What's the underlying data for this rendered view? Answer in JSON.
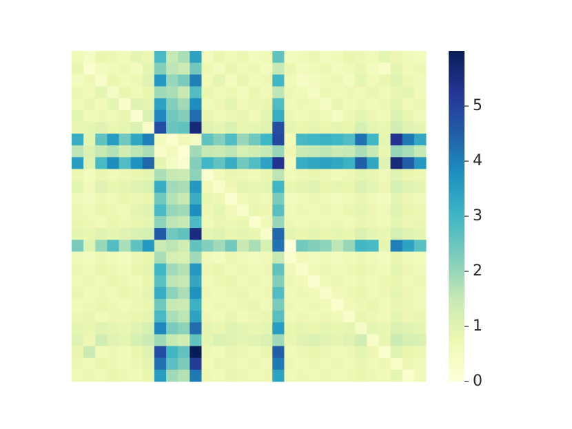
{
  "chart_data": {
    "type": "heatmap",
    "cmap": "YlGnBu",
    "vlim": [
      0,
      6
    ],
    "colorbar_ticks": [
      0,
      1,
      2,
      3,
      4,
      5
    ],
    "matrix": [
      [
        0.6,
        0.4,
        0.8,
        0.7,
        0.6,
        0.9,
        0.7,
        2.9,
        1.5,
        1.8,
        3.4,
        0.5,
        0.8,
        0.6,
        0.7,
        0.5,
        0.6,
        2.6,
        0.5,
        0.6,
        0.7,
        0.5,
        0.6,
        0.8,
        0.7,
        0.6,
        0.9,
        0.7,
        0.6,
        0.5
      ],
      [
        0.8,
        0.2,
        0.5,
        0.6,
        0.7,
        0.5,
        0.9,
        2.2,
        1.6,
        1.4,
        2.4,
        0.7,
        0.5,
        0.8,
        0.6,
        0.7,
        0.5,
        1.5,
        0.8,
        0.5,
        0.6,
        0.7,
        0.5,
        0.6,
        0.8,
        0.5,
        0.3,
        0.9,
        0.6,
        0.7
      ],
      [
        0.5,
        0.7,
        0.3,
        0.8,
        0.6,
        0.7,
        1.0,
        3.6,
        2.0,
        2.3,
        4.0,
        0.6,
        0.9,
        0.5,
        0.8,
        0.6,
        0.7,
        3.0,
        0.6,
        0.4,
        0.5,
        0.6,
        0.7,
        0.5,
        0.9,
        0.6,
        0.8,
        1.0,
        0.7,
        0.6
      ],
      [
        0.7,
        0.6,
        0.9,
        0.4,
        0.8,
        0.6,
        0.8,
        1.9,
        1.8,
        1.5,
        2.8,
        0.8,
        0.6,
        0.7,
        0.5,
        0.8,
        0.6,
        1.6,
        0.7,
        0.6,
        0.4,
        0.7,
        0.6,
        0.7,
        0.6,
        0.8,
        0.6,
        0.8,
        0.9,
        0.6
      ],
      [
        0.6,
        0.8,
        0.6,
        0.9,
        0.3,
        1.0,
        0.9,
        3.4,
        2.2,
        1.9,
        3.8,
        0.6,
        0.7,
        0.9,
        0.6,
        0.7,
        0.8,
        2.8,
        0.6,
        0.7,
        0.6,
        0.4,
        0.8,
        0.6,
        0.7,
        0.6,
        0.7,
        0.9,
        0.6,
        0.7
      ],
      [
        0.9,
        0.6,
        0.7,
        0.6,
        0.8,
        0.2,
        1.1,
        3.9,
        2.4,
        2.2,
        4.3,
        0.8,
        0.6,
        0.7,
        0.8,
        0.6,
        0.9,
        3.2,
        0.7,
        0.6,
        0.7,
        0.6,
        0.4,
        0.7,
        0.9,
        0.7,
        0.6,
        1.1,
        0.8,
        0.6
      ],
      [
        0.8,
        0.9,
        1.0,
        0.8,
        0.9,
        1.1,
        0.3,
        4.8,
        2.5,
        2.6,
        5.6,
        1.0,
        0.9,
        1.1,
        0.8,
        0.9,
        1.0,
        4.8,
        0.9,
        0.8,
        0.9,
        0.8,
        0.9,
        0.8,
        1.2,
        0.9,
        0.8,
        1.3,
        1.0,
        0.9
      ],
      [
        3.2,
        0.9,
        2.6,
        3.5,
        2.4,
        3.3,
        4.0,
        0.5,
        0.2,
        0.6,
        0.4,
        2.6,
        2.2,
        2.8,
        2.0,
        2.4,
        3.0,
        4.9,
        0.6,
        2.9,
        3.0,
        3.1,
        3.0,
        2.8,
        4.2,
        3.0,
        0.9,
        5.3,
        4.1,
        3.3
      ],
      [
        1.6,
        1.1,
        1.5,
        1.7,
        1.3,
        1.6,
        1.8,
        0.3,
        0.5,
        0.1,
        1.9,
        1.5,
        1.4,
        1.6,
        1.2,
        1.3,
        1.5,
        2.0,
        0.7,
        1.4,
        1.5,
        1.6,
        1.4,
        1.5,
        1.8,
        1.5,
        0.8,
        2.0,
        1.8,
        1.5
      ],
      [
        3.5,
        1.0,
        2.9,
        3.8,
        2.8,
        3.7,
        4.4,
        0.9,
        0.4,
        0.2,
        2.2,
        3.0,
        2.6,
        3.2,
        2.4,
        2.8,
        3.4,
        5.3,
        0.5,
        3.2,
        3.3,
        3.4,
        3.3,
        3.1,
        4.5,
        3.3,
        1.0,
        5.6,
        4.5,
        3.6
      ],
      [
        0.7,
        0.5,
        0.8,
        0.6,
        0.7,
        0.8,
        0.9,
        1.8,
        1.5,
        1.4,
        2.1,
        0.2,
        0.6,
        0.8,
        0.7,
        0.6,
        0.8,
        1.6,
        0.6,
        0.7,
        0.8,
        0.7,
        0.6,
        0.7,
        0.9,
        0.8,
        0.6,
        1.0,
        0.8,
        0.7
      ],
      [
        0.9,
        0.6,
        1.0,
        0.8,
        0.9,
        1.0,
        1.1,
        3.2,
        1.9,
        1.8,
        3.6,
        0.6,
        0.3,
        0.7,
        0.9,
        0.8,
        0.9,
        3.0,
        0.8,
        0.9,
        1.0,
        0.8,
        0.9,
        0.8,
        1.1,
        0.9,
        0.7,
        1.2,
        1.0,
        0.9
      ],
      [
        0.6,
        0.5,
        0.7,
        0.6,
        0.8,
        0.7,
        0.8,
        2.4,
        1.7,
        1.5,
        3.2,
        0.8,
        0.7,
        0.2,
        0.6,
        0.7,
        0.6,
        2.3,
        0.5,
        0.6,
        0.7,
        0.6,
        0.5,
        0.6,
        0.8,
        0.6,
        0.5,
        0.9,
        0.7,
        0.6
      ],
      [
        0.7,
        0.6,
        0.8,
        0.7,
        0.6,
        0.9,
        1.0,
        2.9,
        2.0,
        1.9,
        3.8,
        0.7,
        0.9,
        0.6,
        0.3,
        0.8,
        0.7,
        2.7,
        0.6,
        0.7,
        0.6,
        0.7,
        0.6,
        0.8,
        0.9,
        0.7,
        0.6,
        1.0,
        0.8,
        0.7
      ],
      [
        0.8,
        0.7,
        0.6,
        0.8,
        0.7,
        0.8,
        0.9,
        2.1,
        1.6,
        1.5,
        2.9,
        0.6,
        0.8,
        0.7,
        0.8,
        0.2,
        0.6,
        2.0,
        0.7,
        0.6,
        0.7,
        0.6,
        0.7,
        0.6,
        0.8,
        0.7,
        0.6,
        0.9,
        0.7,
        0.8
      ],
      [
        0.9,
        0.8,
        1.0,
        0.9,
        1.0,
        1.1,
        1.2,
        4.6,
        2.4,
        2.6,
        5.5,
        0.9,
        1.0,
        0.8,
        0.9,
        0.8,
        0.3,
        4.4,
        0.9,
        0.8,
        0.9,
        0.8,
        0.9,
        0.8,
        1.1,
        0.9,
        0.8,
        1.2,
        1.0,
        0.9
      ],
      [
        2.3,
        1.0,
        2.0,
        2.8,
        1.8,
        2.6,
        3.6,
        1.4,
        1.6,
        1.3,
        2.6,
        2.2,
        1.9,
        2.4,
        1.5,
        1.8,
        1.2,
        4.2,
        0.0,
        2.4,
        2.2,
        2.1,
        1.6,
        2.0,
        3.0,
        2.9,
        0.9,
        4.0,
        3.4,
        2.7
      ],
      [
        0.6,
        0.5,
        0.7,
        0.6,
        0.5,
        0.7,
        0.8,
        1.8,
        1.2,
        1.1,
        1.9,
        0.6,
        0.5,
        0.7,
        0.6,
        0.5,
        0.6,
        1.5,
        0.2,
        0.6,
        0.5,
        0.6,
        0.5,
        0.6,
        0.7,
        0.6,
        0.5,
        0.8,
        0.6,
        0.5
      ],
      [
        0.7,
        0.6,
        0.8,
        0.7,
        0.6,
        0.8,
        0.9,
        3.0,
        1.9,
        1.7,
        3.6,
        0.7,
        0.8,
        0.6,
        0.7,
        0.6,
        0.7,
        2.6,
        0.6,
        0.3,
        0.6,
        0.7,
        0.6,
        0.7,
        0.8,
        0.7,
        0.6,
        0.9,
        0.7,
        0.6
      ],
      [
        0.6,
        0.7,
        0.6,
        0.8,
        0.7,
        0.6,
        0.8,
        2.7,
        1.6,
        1.5,
        3.3,
        0.6,
        0.7,
        0.8,
        0.6,
        0.7,
        0.6,
        2.2,
        0.7,
        0.6,
        0.2,
        0.6,
        0.7,
        0.6,
        0.7,
        0.6,
        0.7,
        0.8,
        0.6,
        0.7
      ],
      [
        0.8,
        0.6,
        0.7,
        0.6,
        0.8,
        0.7,
        0.9,
        3.2,
        2.1,
        1.8,
        3.7,
        0.7,
        0.6,
        0.7,
        0.8,
        0.6,
        0.7,
        2.8,
        0.6,
        0.7,
        0.6,
        0.3,
        0.6,
        0.7,
        0.8,
        0.6,
        0.7,
        0.9,
        0.7,
        0.6
      ],
      [
        0.6,
        0.7,
        0.8,
        0.7,
        0.6,
        0.7,
        0.8,
        2.4,
        1.5,
        1.4,
        3.1,
        0.6,
        0.7,
        0.6,
        0.7,
        0.8,
        0.6,
        2.3,
        0.7,
        0.6,
        0.7,
        0.6,
        0.2,
        0.6,
        0.7,
        0.8,
        0.6,
        0.8,
        0.7,
        0.6
      ],
      [
        0.7,
        0.8,
        0.6,
        0.7,
        0.7,
        0.8,
        0.9,
        2.9,
        1.8,
        1.6,
        3.4,
        0.7,
        0.6,
        0.8,
        0.6,
        0.7,
        0.8,
        2.7,
        0.6,
        0.7,
        0.6,
        0.7,
        0.6,
        0.3,
        0.8,
        0.7,
        0.6,
        0.9,
        0.7,
        0.8
      ],
      [
        0.9,
        0.8,
        1.0,
        0.9,
        0.8,
        1.0,
        1.2,
        3.9,
        2.3,
        2.1,
        4.3,
        0.9,
        0.8,
        1.0,
        0.9,
        0.8,
        0.9,
        3.5,
        0.8,
        0.9,
        0.8,
        0.9,
        0.8,
        0.9,
        0.4,
        0.9,
        0.8,
        1.1,
        1.0,
        0.9
      ],
      [
        1.0,
        0.7,
        1.3,
        1.0,
        0.9,
        1.2,
        1.4,
        1.9,
        1.5,
        1.3,
        2.6,
        0.9,
        1.1,
        1.0,
        0.9,
        1.0,
        1.1,
        1.9,
        0.8,
        1.0,
        1.1,
        1.0,
        0.9,
        1.0,
        1.3,
        0.3,
        0.8,
        1.4,
        1.2,
        1.1
      ],
      [
        0.8,
        1.4,
        0.6,
        0.7,
        0.6,
        0.8,
        1.0,
        4.8,
        3.0,
        2.6,
        6.0,
        0.7,
        0.6,
        0.8,
        0.7,
        0.6,
        0.8,
        4.5,
        0.6,
        0.7,
        0.8,
        0.7,
        0.6,
        0.7,
        0.9,
        0.7,
        0.2,
        1.0,
        0.8,
        0.7
      ],
      [
        0.7,
        0.6,
        0.8,
        0.7,
        0.6,
        0.7,
        0.9,
        4.2,
        2.7,
        2.3,
        5.1,
        0.6,
        0.8,
        0.7,
        0.6,
        0.7,
        0.6,
        4.1,
        0.7,
        0.6,
        0.7,
        0.6,
        0.7,
        0.6,
        0.8,
        0.6,
        0.7,
        0.3,
        0.7,
        0.6
      ],
      [
        0.6,
        0.7,
        0.6,
        0.8,
        0.7,
        0.6,
        0.8,
        3.5,
        1.9,
        1.7,
        4.1,
        0.7,
        0.6,
        0.8,
        0.7,
        0.6,
        0.7,
        3.4,
        0.6,
        0.7,
        0.6,
        0.7,
        0.6,
        0.7,
        0.8,
        0.7,
        0.6,
        0.9,
        0.2,
        0.6
      ]
    ]
  }
}
